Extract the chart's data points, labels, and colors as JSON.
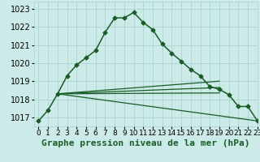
{
  "title": "Graphe pression niveau de la mer (hPa)",
  "background_color": "#cceae8",
  "grid_color": "#aad4d0",
  "line_color": "#1a5c28",
  "xlim": [
    -0.5,
    23
  ],
  "ylim": [
    1016.5,
    1023.4
  ],
  "yticks": [
    1017,
    1018,
    1019,
    1020,
    1021,
    1022,
    1023
  ],
  "xticks": [
    0,
    1,
    2,
    3,
    4,
    5,
    6,
    7,
    8,
    9,
    10,
    11,
    12,
    13,
    14,
    15,
    16,
    17,
    18,
    19,
    20,
    21,
    22,
    23
  ],
  "series": [
    {
      "x": [
        0,
        1,
        2,
        3,
        4,
        5,
        6,
        7,
        8,
        9,
        10,
        11,
        12,
        13,
        14,
        15,
        16,
        17,
        18,
        19,
        20,
        21,
        22,
        23
      ],
      "y": [
        1016.8,
        1017.4,
        1018.3,
        1019.3,
        1019.9,
        1020.3,
        1020.7,
        1021.7,
        1022.5,
        1022.5,
        1022.8,
        1022.25,
        1021.85,
        1021.05,
        1020.55,
        1020.1,
        1019.65,
        1019.3,
        1018.7,
        1018.55,
        1018.25,
        1017.6,
        1017.6,
        1016.8
      ],
      "marker": "D",
      "markersize": 2.5,
      "linewidth": 1.1,
      "zorder": 4
    },
    {
      "x": [
        2,
        19
      ],
      "y": [
        1018.3,
        1019.0
      ],
      "marker": null,
      "linewidth": 0.9,
      "zorder": 2
    },
    {
      "x": [
        2,
        19
      ],
      "y": [
        1018.3,
        1018.65
      ],
      "marker": null,
      "linewidth": 0.9,
      "zorder": 2
    },
    {
      "x": [
        2,
        19
      ],
      "y": [
        1018.3,
        1018.35
      ],
      "marker": null,
      "linewidth": 0.9,
      "zorder": 2
    },
    {
      "x": [
        2,
        23
      ],
      "y": [
        1018.3,
        1016.8
      ],
      "marker": null,
      "linewidth": 0.9,
      "zorder": 2
    }
  ],
  "xlabel_fontsize": 8,
  "tick_fontsize": 6.5,
  "ytick_fontsize": 7
}
